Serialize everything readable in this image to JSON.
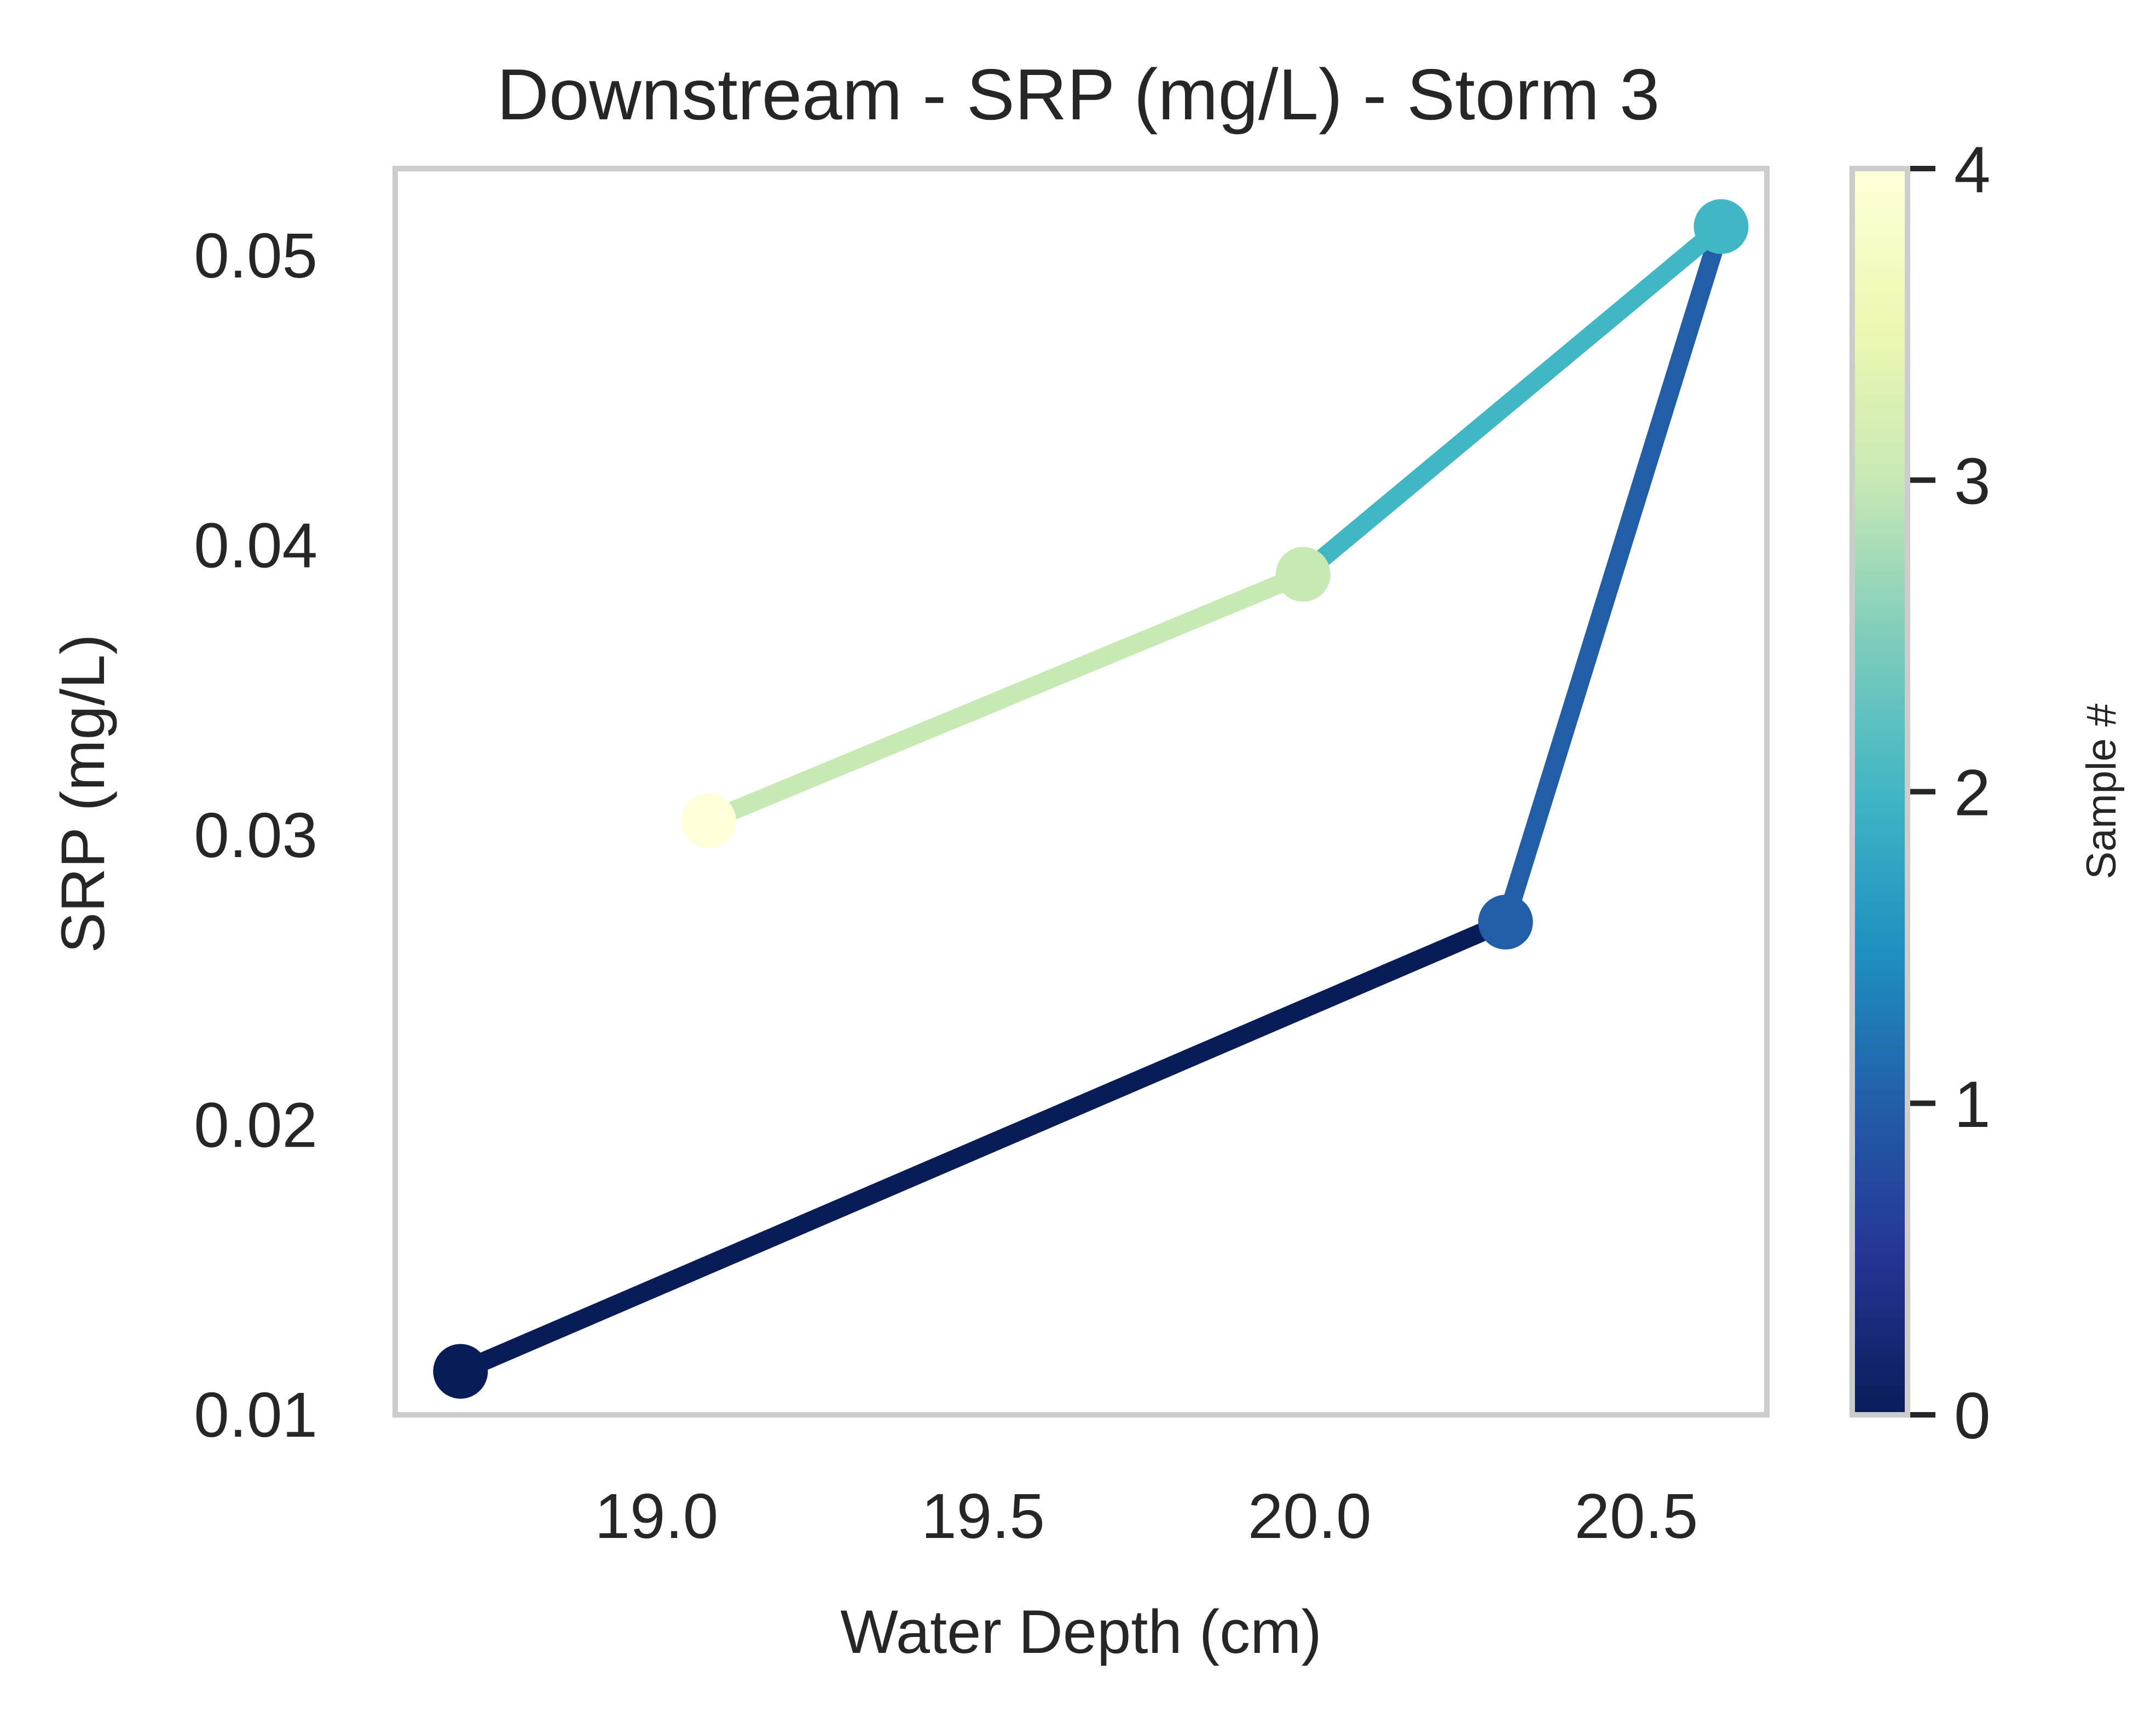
{
  "chart_data": {
    "type": "line",
    "title": "Downstream - SRP (mg/L) - Storm 3",
    "xlabel": "Water Depth (cm)",
    "ylabel": "SRP (mg/L)",
    "xlim": [
      18.6,
      20.7
    ],
    "ylim": [
      0.01,
      0.053
    ],
    "x_ticks": [
      "19.0",
      "19.5",
      "20.0",
      "20.5"
    ],
    "y_ticks": [
      "0.01",
      "0.02",
      "0.03",
      "0.04",
      "0.05"
    ],
    "grid": false,
    "colormap": "YlGnBu_r",
    "colorbar": {
      "label": "Sample #",
      "range": [
        0,
        4
      ],
      "ticks": [
        "0",
        "1",
        "2",
        "3",
        "4"
      ],
      "gradient": [
        "#081d58",
        "#253494",
        "#225ea8",
        "#1d91c0",
        "#41b6c4",
        "#7fcdbb",
        "#c7e9b4",
        "#edf8b1",
        "#ffffd9"
      ]
    },
    "points": [
      {
        "sample": 0,
        "x": 18.7,
        "y": 0.0115,
        "color": "#081d58"
      },
      {
        "sample": 1,
        "x": 20.3,
        "y": 0.027,
        "color": "#225ea8"
      },
      {
        "sample": 2,
        "x": 20.63,
        "y": 0.051,
        "color": "#41b6c4"
      },
      {
        "sample": 3,
        "x": 19.99,
        "y": 0.039,
        "color": "#c7e9b4"
      },
      {
        "sample": 4,
        "x": 19.08,
        "y": 0.0305,
        "color": "#ffffd9"
      }
    ],
    "line_color": "#c7e9b4"
  }
}
